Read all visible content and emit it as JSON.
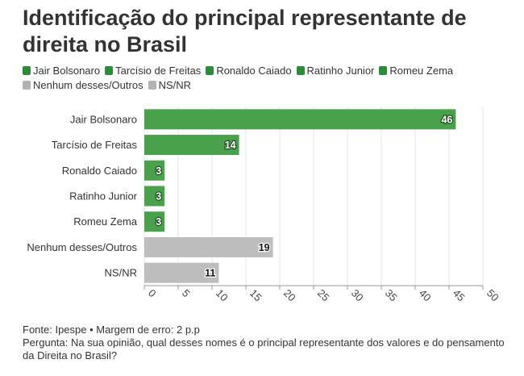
{
  "title": "Identificação do principal representante de direita no Brasil",
  "colors": {
    "green": "#4aa14c",
    "gray": "#bdbdbd",
    "axis": "#999999",
    "text": "#333333"
  },
  "legend": [
    {
      "label": "Jair Bolsonaro",
      "color": "#2e8b3a"
    },
    {
      "label": "Tarcísio de Freitas",
      "color": "#2e8b3a"
    },
    {
      "label": "Ronaldo Caiado",
      "color": "#2e8b3a"
    },
    {
      "label": "Ratinho Junior",
      "color": "#2e8b3a"
    },
    {
      "label": "Romeu Zema",
      "color": "#2e8b3a"
    },
    {
      "label": "Nenhum desses/Outros",
      "color": "#b3b3b3"
    },
    {
      "label": "NS/NR",
      "color": "#b3b3b3"
    }
  ],
  "chart_data": {
    "type": "bar",
    "orientation": "horizontal",
    "categories": [
      "Jair Bolsonaro",
      "Tarcísio de Freitas",
      "Ronaldo Caiado",
      "Ratinho Junior",
      "Romeu Zema",
      "Nenhum desses/Outros",
      "NS/NR"
    ],
    "values": [
      46,
      14,
      3,
      3,
      3,
      19,
      11
    ],
    "bar_colors": [
      "#4aa14c",
      "#4aa14c",
      "#4aa14c",
      "#4aa14c",
      "#4aa14c",
      "#bdbdbd",
      "#bdbdbd"
    ],
    "value_labels": [
      "46",
      "14",
      "3",
      "3",
      "3",
      "19",
      "11"
    ],
    "xlim": [
      0,
      50
    ],
    "xticks": [
      0,
      5,
      10,
      15,
      20,
      25,
      30,
      35,
      40,
      45,
      50
    ],
    "grid": true
  },
  "footer": {
    "source": "Fonte: Ipespe • Margem de erro: 2 p.p",
    "question": "Pergunta: Na sua opinião, qual desses nomes é o principal representante dos valores e do pensamento da Direita no Brasil?"
  }
}
